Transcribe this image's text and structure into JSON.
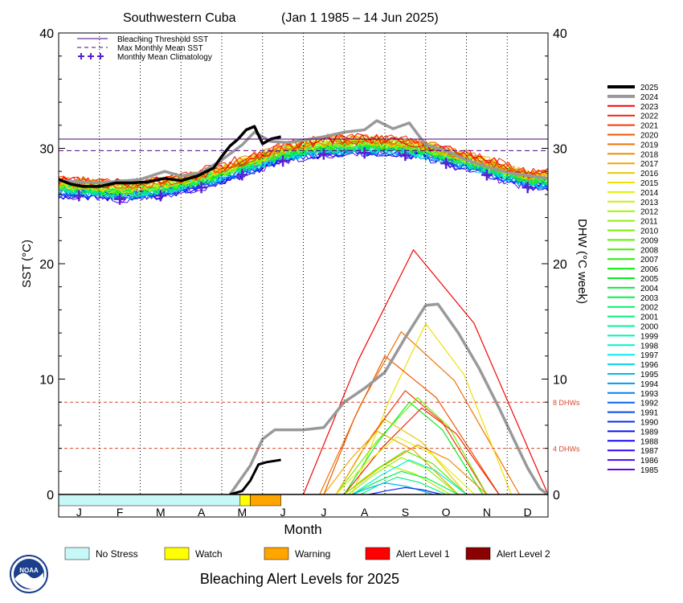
{
  "chart_data": {
    "type": "line",
    "title": "Southwestern Cuba",
    "date_range": "(Jan 1 1985 – 14 Jun 2025)",
    "xlabel": "Month",
    "ylabel_left": "SST (°C)",
    "ylabel_right": "DHW (°C week)",
    "ylim": [
      0,
      40
    ],
    "yticks": [
      "0",
      "10",
      "20",
      "30",
      "40"
    ],
    "month_labels": [
      "J",
      "F",
      "M",
      "A",
      "M",
      "J",
      "J",
      "A",
      "S",
      "O",
      "N",
      "D"
    ],
    "legend_top": [
      {
        "label": "Bleaching Threshold SST",
        "color": "#4b0082",
        "style": "solid"
      },
      {
        "label": "Max Monthly Mean SST",
        "color": "#4b0082",
        "style": "dashed"
      },
      {
        "label": "Monthly Mean Climatology",
        "color": "#5a1fd1",
        "style": "plus"
      }
    ],
    "bleaching_threshold": 30.8,
    "max_monthly_mean": 29.8,
    "dhw_levels": [
      {
        "value": 8,
        "label": "8 DHWs"
      },
      {
        "value": 4,
        "label": "4 DHWs"
      }
    ],
    "climatology": [
      {
        "month": 0.5,
        "value": 25.9
      },
      {
        "month": 1.5,
        "value": 25.6
      },
      {
        "month": 2.5,
        "value": 25.9
      },
      {
        "month": 3.5,
        "value": 26.6
      },
      {
        "month": 4.5,
        "value": 27.7
      },
      {
        "month": 5.5,
        "value": 28.9
      },
      {
        "month": 6.5,
        "value": 29.5
      },
      {
        "month": 7.5,
        "value": 29.6
      },
      {
        "month": 8.5,
        "value": 29.4
      },
      {
        "month": 9.5,
        "value": 28.7
      },
      {
        "month": 10.5,
        "value": 27.7
      },
      {
        "month": 11.5,
        "value": 26.6
      }
    ],
    "series_2025_sst": [
      [
        0,
        27.3
      ],
      [
        0.3,
        26.9
      ],
      [
        0.6,
        26.7
      ],
      [
        1.0,
        26.7
      ],
      [
        1.4,
        27.0
      ],
      [
        1.8,
        27.0
      ],
      [
        2.2,
        27.1
      ],
      [
        2.6,
        27.4
      ],
      [
        3.0,
        27.2
      ],
      [
        3.4,
        27.6
      ],
      [
        3.8,
        28.3
      ],
      [
        4.0,
        29.3
      ],
      [
        4.2,
        30.2
      ],
      [
        4.4,
        30.8
      ],
      [
        4.6,
        31.6
      ],
      [
        4.8,
        31.9
      ],
      [
        5.0,
        30.4
      ],
      [
        5.2,
        30.8
      ],
      [
        5.45,
        31.0
      ]
    ],
    "series_2025_dhw": [
      [
        4.2,
        0
      ],
      [
        4.5,
        0.3
      ],
      [
        4.7,
        1.2
      ],
      [
        4.9,
        2.6
      ],
      [
        5.1,
        2.8
      ],
      [
        5.45,
        3.0
      ]
    ],
    "series_2024_sst": [
      [
        0,
        27.2
      ],
      [
        1.0,
        27.0
      ],
      [
        2.0,
        27.3
      ],
      [
        2.6,
        28.0
      ],
      [
        3.0,
        27.6
      ],
      [
        3.5,
        27.9
      ],
      [
        4.0,
        29.0
      ],
      [
        4.5,
        30.3
      ],
      [
        4.8,
        31.4
      ],
      [
        5.2,
        30.6
      ],
      [
        5.6,
        30.5
      ],
      [
        6.0,
        30.7
      ],
      [
        6.5,
        31.0
      ],
      [
        7.0,
        31.4
      ],
      [
        7.5,
        31.6
      ],
      [
        7.8,
        32.4
      ],
      [
        8.2,
        31.7
      ],
      [
        8.6,
        32.2
      ],
      [
        9.0,
        30.3
      ],
      [
        9.5,
        29.8
      ],
      [
        10.0,
        29.0
      ],
      [
        10.5,
        28.4
      ],
      [
        11.0,
        27.9
      ],
      [
        12.0,
        27.4
      ]
    ],
    "series_2024_dhw": [
      [
        4.2,
        0
      ],
      [
        4.7,
        2.5
      ],
      [
        5.0,
        4.8
      ],
      [
        5.3,
        5.6
      ],
      [
        6.0,
        5.6
      ],
      [
        6.5,
        5.8
      ],
      [
        7.0,
        8.0
      ],
      [
        7.5,
        9.2
      ],
      [
        8.0,
        10.6
      ],
      [
        8.5,
        13.6
      ],
      [
        9.0,
        16.4
      ],
      [
        9.3,
        16.5
      ],
      [
        9.8,
        14.0
      ],
      [
        10.3,
        11.0
      ],
      [
        10.8,
        7.5
      ],
      [
        11.2,
        4.5
      ],
      [
        11.5,
        2.3
      ],
      [
        11.8,
        0.5
      ],
      [
        12.0,
        0
      ]
    ],
    "dhw_peaks": [
      {
        "year": "2023",
        "peak_month": 8.7,
        "peak": 21.2,
        "start": 6.0,
        "end": 12.0
      },
      {
        "year": "2019",
        "peak_month": 8.4,
        "peak": 14.1,
        "start": 6.4,
        "end": 11.3
      },
      {
        "year": "2015",
        "peak_month": 9.0,
        "peak": 14.8,
        "start": 7.2,
        "end": 11.1
      },
      {
        "year": "2020",
        "peak_month": 8.0,
        "peak": 12.0,
        "start": 6.5,
        "end": 10.8
      },
      {
        "year": "2021",
        "peak_month": 8.5,
        "peak": 9.0,
        "start": 6.8,
        "end": 10.5
      },
      {
        "year": "2010",
        "peak_month": 8.8,
        "peak": 8.4,
        "start": 6.8,
        "end": 10.5
      },
      {
        "year": "2005",
        "peak_month": 8.6,
        "peak": 8.0,
        "start": 7.0,
        "end": 10.4
      },
      {
        "year": "2022",
        "peak_month": 8.9,
        "peak": 7.5,
        "start": 7.0,
        "end": 10.8
      },
      {
        "year": "2016",
        "peak_month": 8.0,
        "peak": 6.5,
        "start": 6.8,
        "end": 10.0
      },
      {
        "year": "2017",
        "peak_month": 7.8,
        "peak": 5.5,
        "start": 6.5,
        "end": 9.8
      },
      {
        "year": "2014",
        "peak_month": 8.3,
        "peak": 5.0,
        "start": 6.8,
        "end": 10.2
      },
      {
        "year": "2018",
        "peak_month": 8.8,
        "peak": 4.3,
        "start": 7.0,
        "end": 10.5
      },
      {
        "year": "2009",
        "peak_month": 8.5,
        "peak": 3.8,
        "start": 7.0,
        "end": 10.0
      },
      {
        "year": "2011",
        "peak_month": 8.4,
        "peak": 3.2,
        "start": 7.1,
        "end": 9.8
      },
      {
        "year": "2012",
        "peak_month": 8.0,
        "peak": 2.6,
        "start": 7.0,
        "end": 9.6
      },
      {
        "year": "2004",
        "peak_month": 8.4,
        "peak": 2.0,
        "start": 7.2,
        "end": 9.8
      },
      {
        "year": "2001",
        "peak_month": 8.3,
        "peak": 1.5,
        "start": 7.4,
        "end": 9.5
      },
      {
        "year": "1998",
        "peak_month": 8.6,
        "peak": 3.0,
        "start": 7.2,
        "end": 10.0
      },
      {
        "year": "1995",
        "peak_month": 8.0,
        "peak": 1.0,
        "start": 7.2,
        "end": 9.2
      },
      {
        "year": "1990",
        "peak_month": 8.5,
        "peak": 0.6,
        "start": 7.6,
        "end": 9.4
      }
    ],
    "legend_years": [
      "2025",
      "2024",
      "2023",
      "2022",
      "2021",
      "2020",
      "2019",
      "2018",
      "2017",
      "2016",
      "2015",
      "2014",
      "2013",
      "2012",
      "2011",
      "2010",
      "2009",
      "2008",
      "2007",
      "2006",
      "2005",
      "2004",
      "2003",
      "2002",
      "2001",
      "2000",
      "1999",
      "1998",
      "1997",
      "1996",
      "1995",
      "1994",
      "1993",
      "1992",
      "1991",
      "1990",
      "1989",
      "1988",
      "1987",
      "1986",
      "1985"
    ],
    "alert_bar_2025": [
      {
        "from": 0,
        "to": 4.45,
        "level": "no_stress"
      },
      {
        "from": 4.45,
        "to": 4.7,
        "level": "watch"
      },
      {
        "from": 4.7,
        "to": 5.45,
        "level": "warning"
      }
    ]
  },
  "alert_legend": [
    {
      "key": "no_stress",
      "label": "No Stress",
      "color": "#c8f7f7"
    },
    {
      "key": "watch",
      "label": "Watch",
      "color": "#ffff00"
    },
    {
      "key": "warning",
      "label": "Warning",
      "color": "#ffa500"
    },
    {
      "key": "alert1",
      "label": "Alert Level 1",
      "color": "#ff0000"
    },
    {
      "key": "alert2",
      "label": "Alert Level 2",
      "color": "#8b0000"
    }
  ],
  "footer_title": "Bleaching Alert Levels for 2025",
  "logo_text": "NOAA",
  "colors": {
    "threshold": "#4b0082",
    "dhw_ref": "#d9472b",
    "y2025": "#000000",
    "y2024": "#999999"
  }
}
